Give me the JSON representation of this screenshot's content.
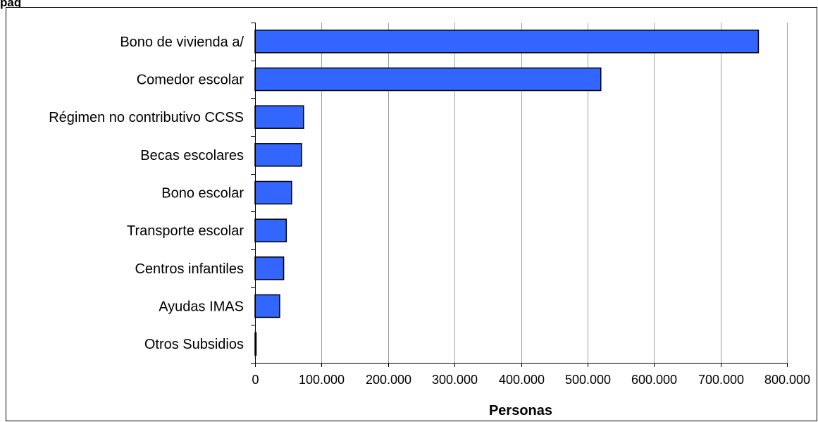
{
  "top_text": "pág",
  "chart_data": {
    "type": "bar",
    "orientation": "horizontal",
    "categories": [
      "Bono de vivienda a/",
      "Comedor escolar",
      "Régimen no contributivo CCSS",
      "Becas escolares",
      "Bono escolar",
      "Transporte escolar",
      "Centros infantiles",
      "Ayudas IMAS",
      "Otros Subsidios"
    ],
    "values": [
      757000,
      520000,
      73000,
      70000,
      55000,
      47000,
      43000,
      37000,
      1500
    ],
    "xlabel": "Personas",
    "ylabel": "",
    "xlim": [
      0,
      800000
    ],
    "xticks": [
      0,
      100000,
      200000,
      300000,
      400000,
      500000,
      600000,
      700000,
      800000
    ],
    "xtick_labels": [
      "0",
      "100.000",
      "200.000",
      "300.000",
      "400.000",
      "500.000",
      "600.000",
      "700.000",
      "800.000"
    ],
    "grid": "vertical",
    "colors": {
      "bar_fill": "#3366ff",
      "bar_stroke": "#000000",
      "grid": "#a0a0a0"
    }
  }
}
